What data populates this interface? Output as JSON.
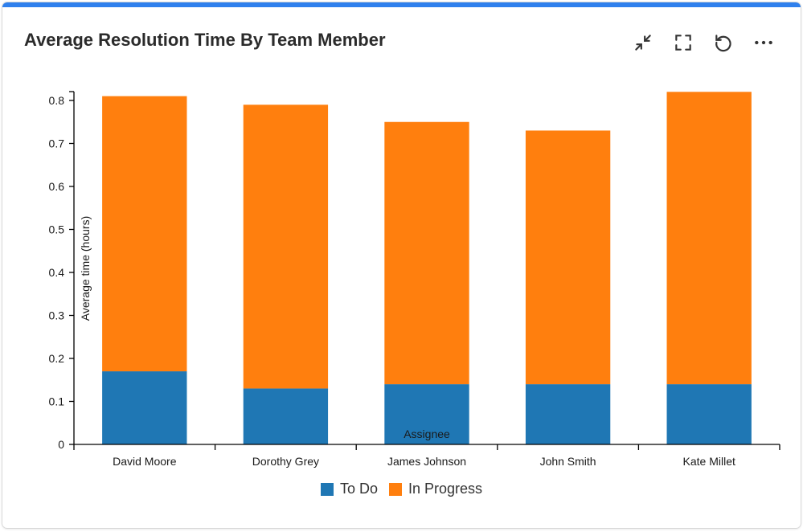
{
  "header": {
    "title": "Average Resolution Time By Team Member",
    "accent_color": "#2f80ed"
  },
  "toolbar": {
    "icons": [
      "collapse-icon",
      "fullscreen-icon",
      "refresh-icon",
      "more-icon"
    ]
  },
  "chart_data": {
    "type": "bar",
    "stacked": true,
    "title": "Average Resolution Time By Team Member",
    "xlabel": "Assignee",
    "ylabel": "Average time (hours)",
    "ylim": [
      0,
      0.8
    ],
    "yticks": [
      "0",
      "0.1",
      "0.2",
      "0.3",
      "0.4",
      "0.5",
      "0.6",
      "0.7",
      "0.8"
    ],
    "categories": [
      "David Moore",
      "Dorothy Grey",
      "James Johnson",
      "John Smith",
      "Kate Millet"
    ],
    "series": [
      {
        "name": "To Do",
        "color": "#1f77b4",
        "values": [
          0.17,
          0.13,
          0.14,
          0.14,
          0.14
        ]
      },
      {
        "name": "In Progress",
        "color": "#ff7f0e",
        "values": [
          0.64,
          0.66,
          0.61,
          0.59,
          0.68
        ]
      }
    ],
    "legend_position": "bottom-center",
    "grid": false
  }
}
